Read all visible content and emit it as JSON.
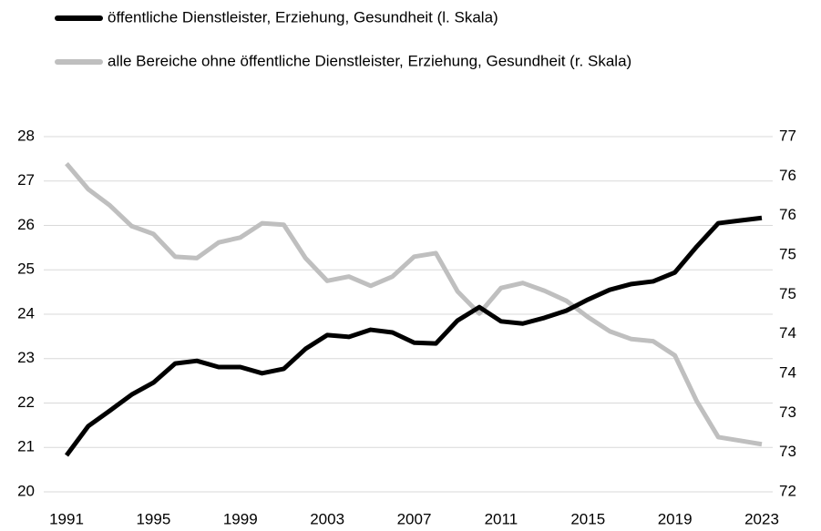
{
  "chart_data": {
    "type": "line",
    "x": [
      1991,
      1992,
      1993,
      1994,
      1995,
      1996,
      1997,
      1998,
      1999,
      2000,
      2001,
      2002,
      2003,
      2004,
      2005,
      2006,
      2007,
      2008,
      2009,
      2010,
      2011,
      2012,
      2013,
      2014,
      2015,
      2016,
      2017,
      2018,
      2019,
      2020,
      2021,
      2022,
      2023
    ],
    "xlim": [
      1991,
      2023
    ],
    "xticks": [
      1991,
      1995,
      1999,
      2003,
      2007,
      2011,
      2015,
      2019,
      2023
    ],
    "ylim": [
      20,
      28
    ],
    "yticks": [
      20,
      21,
      22,
      23,
      24,
      25,
      26,
      27,
      28
    ],
    "y2lim": [
      72,
      77
    ],
    "y2ticks": [
      {
        "value": 72,
        "label": "72"
      },
      {
        "value": 72.556,
        "label": "73"
      },
      {
        "value": 73.111,
        "label": "73"
      },
      {
        "value": 73.667,
        "label": "74"
      },
      {
        "value": 74.222,
        "label": "74"
      },
      {
        "value": 74.778,
        "label": "75"
      },
      {
        "value": 75.333,
        "label": "75"
      },
      {
        "value": 75.889,
        "label": "76"
      },
      {
        "value": 76.444,
        "label": "76"
      },
      {
        "value": 77,
        "label": "77"
      }
    ],
    "grid": true,
    "legend": "top",
    "series": [
      {
        "name": "öffentliche Dienstleister, Erziehung, Gesundheit (l. Skala)",
        "color": "#000000",
        "axis": "y",
        "values": [
          20.82,
          21.48,
          21.83,
          22.19,
          22.46,
          22.89,
          22.95,
          22.81,
          22.81,
          22.67,
          22.77,
          23.22,
          23.53,
          23.49,
          23.65,
          23.59,
          23.36,
          23.34,
          23.86,
          24.16,
          23.84,
          23.79,
          23.92,
          24.08,
          24.33,
          24.55,
          24.68,
          24.74,
          24.94,
          25.52,
          26.05,
          26.11,
          26.17
        ]
      },
      {
        "name": "alle Bereiche ohne öffentliche Dienstleister, Erziehung, Gesundheit (r. Skala)",
        "color": "#bfbfbf",
        "axis": "y2",
        "values": [
          76.62,
          76.26,
          76.03,
          75.74,
          75.63,
          75.31,
          75.29,
          75.51,
          75.58,
          75.78,
          75.76,
          75.29,
          74.97,
          75.03,
          74.9,
          75.03,
          75.31,
          75.36,
          74.82,
          74.51,
          74.87,
          74.94,
          74.83,
          74.69,
          74.46,
          74.26,
          74.15,
          74.12,
          73.92,
          73.28,
          72.77,
          72.72,
          72.67
        ]
      }
    ]
  }
}
